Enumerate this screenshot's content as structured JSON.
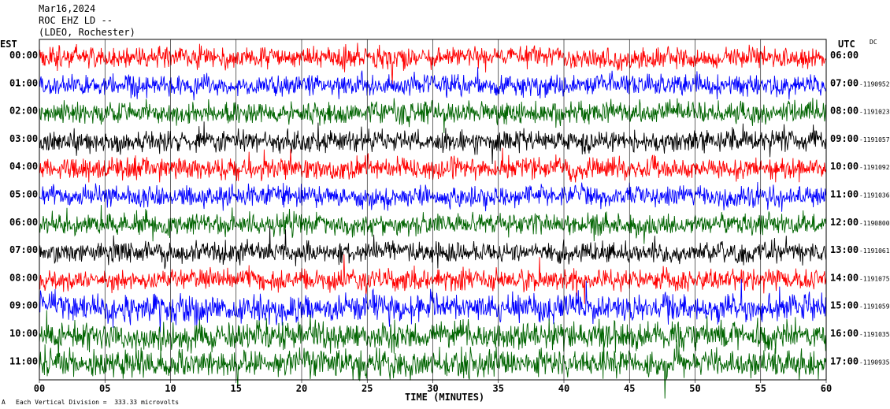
{
  "header": {
    "date": "Mar16,2024",
    "station": "ROC EHZ LD --",
    "network": "(LDEO, Rochester)"
  },
  "left_axis_label": "EST",
  "right_axis_label": "UTC",
  "dc_label": "DC",
  "footer": {
    "corner_mark": "A",
    "scale_text": "Each Vertical Division =  333.33 microvolts"
  },
  "chart_data": {
    "type": "line",
    "title": "",
    "xlabel": "TIME (MINUTES)",
    "ylabel": "",
    "xlim": [
      0,
      60
    ],
    "x_ticks": [
      "00",
      "05",
      "10",
      "15",
      "20",
      "25",
      "30",
      "35",
      "40",
      "45",
      "50",
      "55",
      "60"
    ],
    "colors": {
      "red": "#ff0000",
      "blue": "#0000ff",
      "green": "#006400",
      "black": "#000000"
    },
    "rows": [
      {
        "est": "00:00",
        "utc": "06:00",
        "dc": "",
        "color": "red"
      },
      {
        "est": "01:00",
        "utc": "07:00",
        "dc": "-1190952",
        "color": "blue"
      },
      {
        "est": "02:00",
        "utc": "08:00",
        "dc": "-1191023",
        "color": "green"
      },
      {
        "est": "03:00",
        "utc": "09:00",
        "dc": "-1191057",
        "color": "black"
      },
      {
        "est": "04:00",
        "utc": "10:00",
        "dc": "-1191092",
        "color": "red"
      },
      {
        "est": "05:00",
        "utc": "11:00",
        "dc": "-1191036",
        "color": "blue"
      },
      {
        "est": "06:00",
        "utc": "12:00",
        "dc": "-1190800",
        "color": "green"
      },
      {
        "est": "07:00",
        "utc": "13:00",
        "dc": "-1191061",
        "color": "black"
      },
      {
        "est": "08:00",
        "utc": "14:00",
        "dc": "-1191075",
        "color": "red"
      },
      {
        "est": "09:00",
        "utc": "15:00",
        "dc": "-1191059",
        "color": "blue"
      },
      {
        "est": "10:00",
        "utc": "16:00",
        "dc": "-1191035",
        "color": "green"
      },
      {
        "est": "11:00",
        "utc": "17:00",
        "dc": "-1190935",
        "color": "green"
      }
    ]
  }
}
